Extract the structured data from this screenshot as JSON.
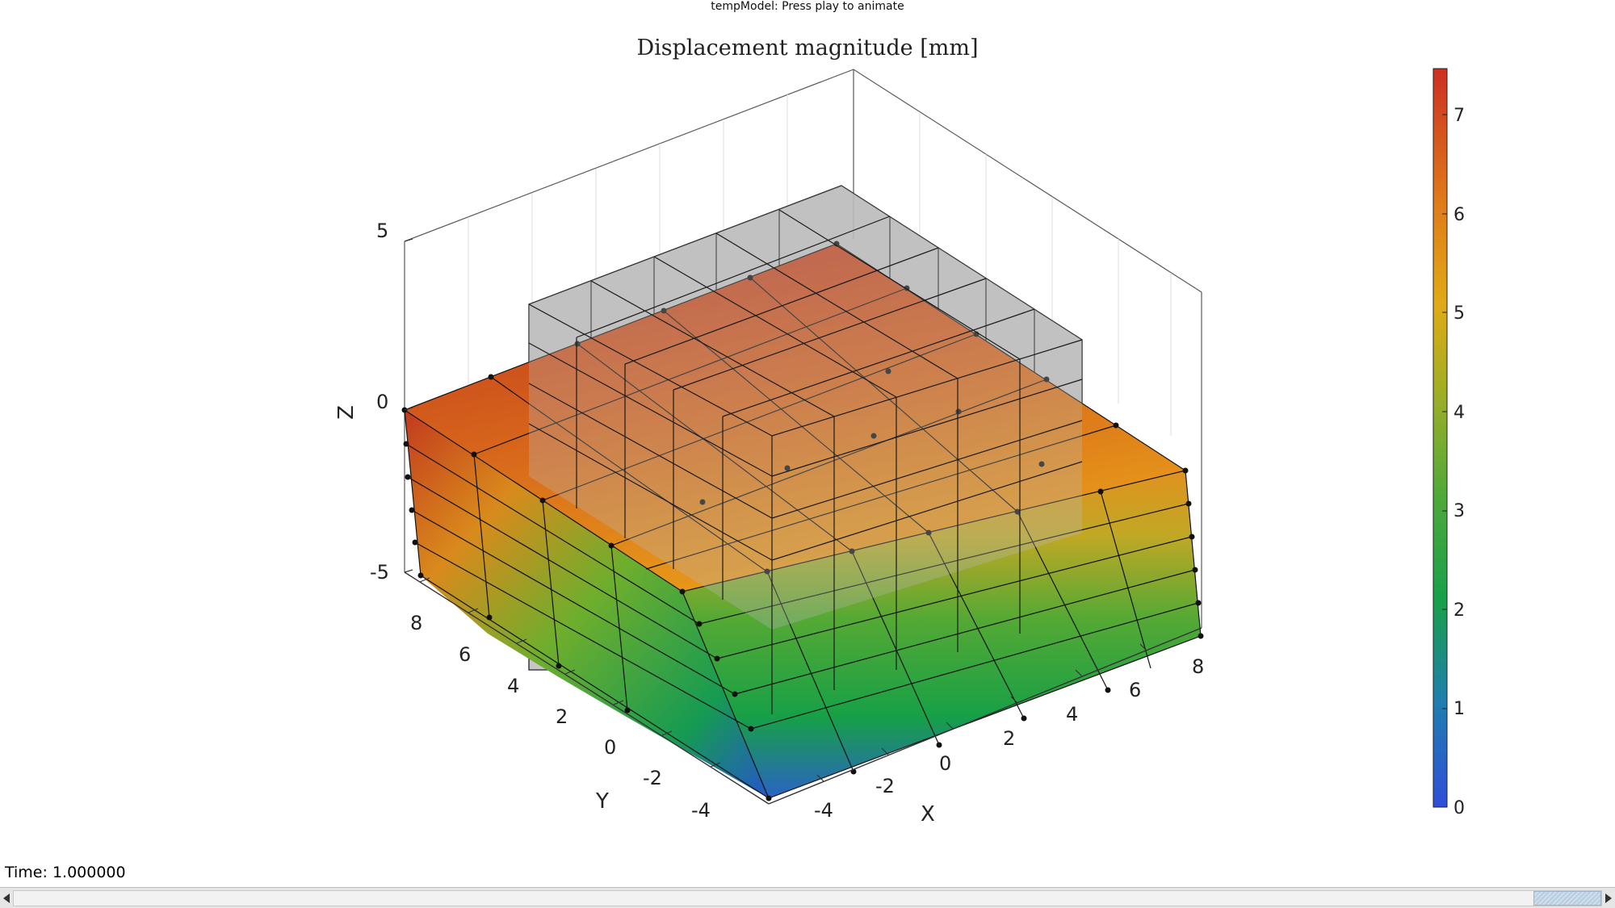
{
  "window": {
    "title": "tempModel: Press play to animate"
  },
  "plot": {
    "title": "Displacement magnitude [mm]",
    "axes": {
      "x": {
        "label": "X",
        "ticks": [
          "-4",
          "-2",
          "0",
          "2",
          "4",
          "6",
          "8"
        ]
      },
      "y": {
        "label": "Y",
        "ticks": [
          "-4",
          "-2",
          "0",
          "2",
          "4",
          "6",
          "8"
        ]
      },
      "z": {
        "label": "Z",
        "ticks": [
          "-5",
          "0",
          "5"
        ]
      }
    },
    "colorbar": {
      "ticks": [
        "0",
        "1",
        "2",
        "3",
        "4",
        "5",
        "6",
        "7"
      ],
      "colormap": [
        "#2f4ed8",
        "#1f7db0",
        "#17a04a",
        "#5fb42f",
        "#c7b21d",
        "#e79417",
        "#d86a1d",
        "#cc2f22"
      ]
    }
  },
  "status": {
    "time": "Time: 1.000000"
  },
  "scrollbar": {
    "left_arrow": "left-arrow-icon",
    "right_arrow": "right-arrow-icon"
  }
}
